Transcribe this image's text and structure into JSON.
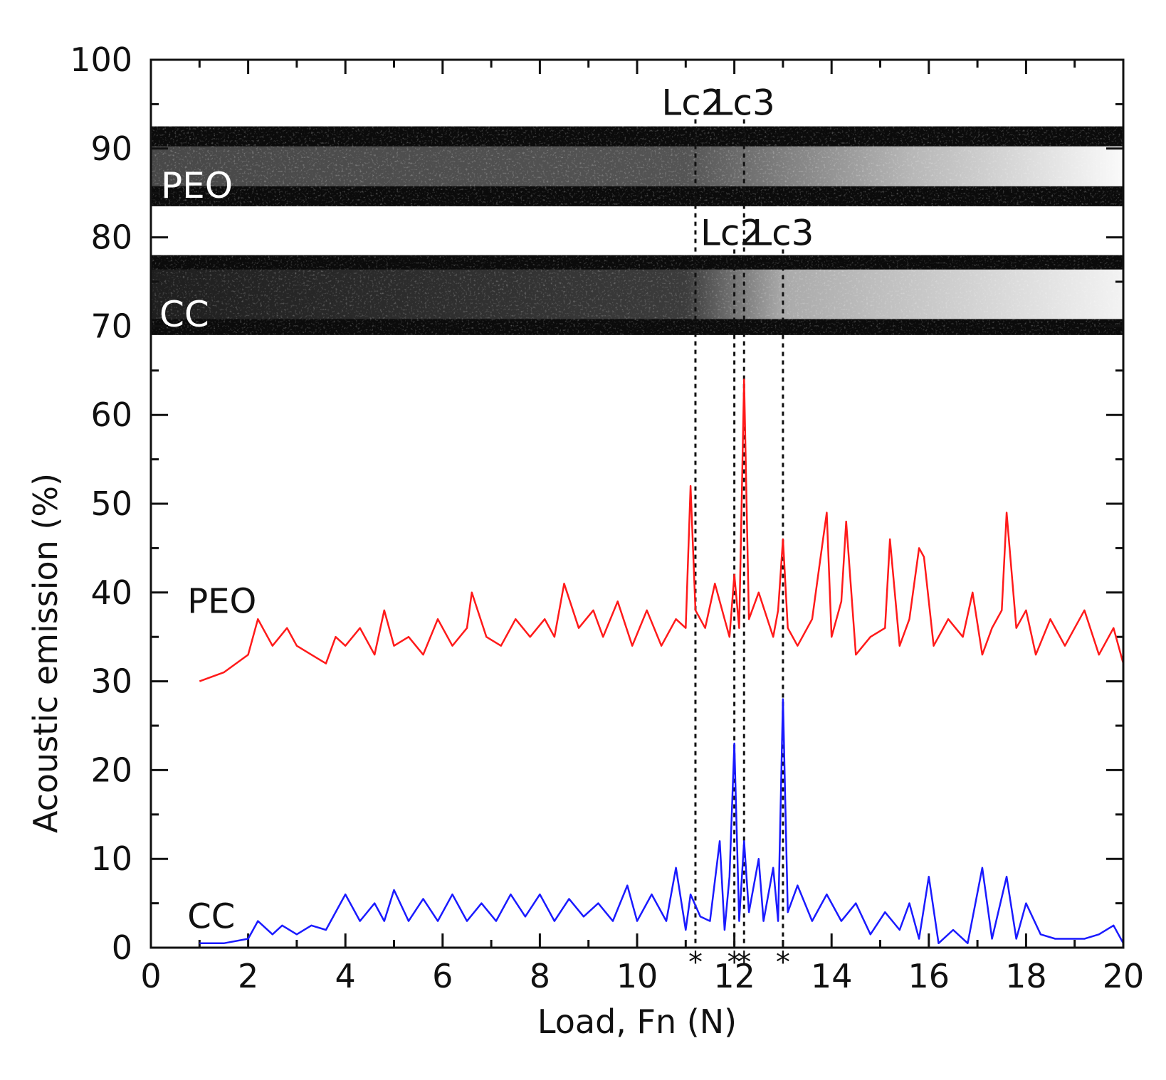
{
  "chart_data": {
    "type": "line",
    "title": "",
    "xlabel": "Load, Fn (N)",
    "ylabel": "Acoustic emission (%)",
    "xlim": [
      0,
      20
    ],
    "ylim": [
      0,
      100
    ],
    "x_ticks": [
      0,
      2,
      4,
      6,
      8,
      10,
      12,
      14,
      16,
      18,
      20
    ],
    "y_ticks": [
      0,
      10,
      20,
      30,
      40,
      50,
      60,
      70,
      80,
      90,
      100
    ],
    "grid": false,
    "series": [
      {
        "name": "PEO",
        "color": "#ff1a1a",
        "x": [
          1.0,
          1.5,
          2.0,
          2.2,
          2.5,
          2.8,
          3.0,
          3.3,
          3.6,
          3.8,
          4.0,
          4.3,
          4.6,
          4.8,
          5.0,
          5.3,
          5.6,
          5.9,
          6.2,
          6.5,
          6.6,
          6.9,
          7.2,
          7.5,
          7.8,
          8.1,
          8.3,
          8.5,
          8.8,
          9.1,
          9.3,
          9.6,
          9.9,
          10.2,
          10.5,
          10.8,
          11.0,
          11.1,
          11.2,
          11.4,
          11.6,
          11.8,
          11.9,
          12.0,
          12.1,
          12.2,
          12.3,
          12.5,
          12.8,
          12.9,
          13.0,
          13.1,
          13.3,
          13.6,
          13.8,
          13.9,
          14.0,
          14.2,
          14.3,
          14.5,
          14.8,
          15.1,
          15.2,
          15.4,
          15.6,
          15.8,
          15.9,
          16.1,
          16.4,
          16.7,
          16.9,
          17.1,
          17.3,
          17.5,
          17.6,
          17.8,
          18.0,
          18.2,
          18.5,
          18.8,
          19.0,
          19.2,
          19.5,
          19.8,
          20.0
        ],
        "values": [
          30,
          31,
          33,
          37,
          34,
          36,
          34,
          33,
          32,
          35,
          34,
          36,
          33,
          38,
          34,
          35,
          33,
          37,
          34,
          36,
          40,
          35,
          34,
          37,
          35,
          37,
          35,
          41,
          36,
          38,
          35,
          39,
          34,
          38,
          34,
          37,
          36,
          52,
          38,
          36,
          41,
          37,
          35,
          42,
          36,
          64,
          37,
          40,
          35,
          38,
          46,
          36,
          34,
          37,
          45,
          49,
          35,
          39,
          48,
          33,
          35,
          36,
          46,
          34,
          37,
          45,
          44,
          34,
          37,
          35,
          40,
          33,
          36,
          38,
          49,
          36,
          38,
          33,
          37,
          34,
          36,
          38,
          33,
          36,
          32
        ]
      },
      {
        "name": "CC",
        "color": "#1a1aff",
        "x": [
          1.0,
          1.5,
          2.0,
          2.2,
          2.5,
          2.7,
          3.0,
          3.3,
          3.6,
          3.8,
          4.0,
          4.3,
          4.6,
          4.8,
          5.0,
          5.3,
          5.6,
          5.9,
          6.2,
          6.5,
          6.8,
          7.1,
          7.4,
          7.7,
          8.0,
          8.3,
          8.6,
          8.9,
          9.2,
          9.5,
          9.8,
          10.0,
          10.3,
          10.6,
          10.8,
          11.0,
          11.1,
          11.3,
          11.5,
          11.7,
          11.8,
          11.9,
          12.0,
          12.1,
          12.2,
          12.3,
          12.5,
          12.6,
          12.8,
          12.9,
          13.0,
          13.1,
          13.3,
          13.6,
          13.9,
          14.2,
          14.5,
          14.8,
          15.1,
          15.4,
          15.6,
          15.8,
          16.0,
          16.2,
          16.5,
          16.8,
          17.1,
          17.3,
          17.6,
          17.8,
          18.0,
          18.3,
          18.6,
          18.9,
          19.2,
          19.5,
          19.8,
          20.0
        ],
        "values": [
          0.5,
          0.5,
          1.0,
          3,
          1.5,
          2.5,
          1.5,
          2.5,
          2,
          4,
          6,
          3,
          5,
          3,
          6.5,
          3,
          5.5,
          3,
          6,
          3,
          5,
          3,
          6,
          3.5,
          6,
          3,
          5.5,
          3.5,
          5,
          3,
          7,
          3,
          6,
          3,
          9,
          2,
          6,
          3.5,
          3,
          12,
          2,
          8,
          23,
          3,
          12,
          4,
          10,
          3,
          9,
          3,
          28,
          4,
          7,
          3,
          6,
          3,
          5,
          1.5,
          4,
          2,
          5,
          1,
          8,
          0.5,
          2,
          0.5,
          9,
          1,
          8,
          1,
          5,
          1.5,
          1,
          1,
          1,
          1.5,
          2.5,
          0.5
        ]
      }
    ],
    "annotations": {
      "critical_markers": [
        {
          "x": 11.2,
          "label": "Lc2",
          "sample": "PEO"
        },
        {
          "x": 12.2,
          "label": "Lc3",
          "sample": "PEO"
        },
        {
          "x": 12.0,
          "label": "Lc2",
          "sample": "CC"
        },
        {
          "x": 13.0,
          "label": "Lc3",
          "sample": "CC"
        }
      ],
      "asterisk_x": [
        11.2,
        12.0,
        12.2,
        13.0
      ],
      "asterisk_symbol": "*",
      "image_strips": [
        {
          "label": "PEO",
          "y_range": [
            83.5,
            92.5
          ]
        },
        {
          "label": "CC",
          "y_range": [
            69,
            78
          ]
        }
      ],
      "series_labels": [
        {
          "text": "PEO",
          "x": 0.75,
          "y": 39
        },
        {
          "text": "CC",
          "x": 0.75,
          "y": 3.5
        }
      ]
    }
  }
}
